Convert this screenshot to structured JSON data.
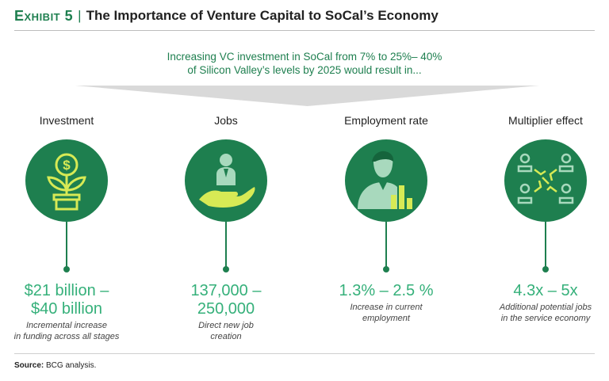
{
  "header": {
    "exhibit_label": "Exhibit 5",
    "separator": "|",
    "title": "The Importance of Venture Capital to SoCal’s Economy"
  },
  "intro": {
    "line1": "Increasing VC investment in SoCal from 7% to 25%– 40%",
    "line2": "of Silicon Valley’s levels by 2025 would result in..."
  },
  "colors": {
    "primary_green": "#1e7f4f",
    "light_green": "#35b07a",
    "accent_yellow": "#d7ea55",
    "wedge_gray": "#d9d9d9"
  },
  "columns": [
    {
      "heading": "Investment",
      "icon": "money-plant-icon",
      "value_line1": "$21 billion –",
      "value_line2": "$40 billion",
      "desc_line1": "Incremental increase",
      "desc_line2": "in funding across all stages"
    },
    {
      "heading": "Jobs",
      "icon": "hand-holding-person-icon",
      "value_line1": "137,000 –",
      "value_line2": "250,000",
      "desc_line1": "Direct new job",
      "desc_line2": "creation"
    },
    {
      "heading": "Employment rate",
      "icon": "person-bar-chart-icon",
      "value_line1": "1.3% – 2.5 %",
      "value_line2": "",
      "desc_line1": "Increase in current",
      "desc_line2": "employment"
    },
    {
      "heading": "Multiplier effect",
      "icon": "network-people-icon",
      "value_line1": "4.3x – 5x",
      "value_line2": "",
      "desc_line1": "Additional potential jobs",
      "desc_line2": "in the service economy"
    }
  ],
  "footer": {
    "source_label": "Source:",
    "source_text": " BCG analysis."
  }
}
